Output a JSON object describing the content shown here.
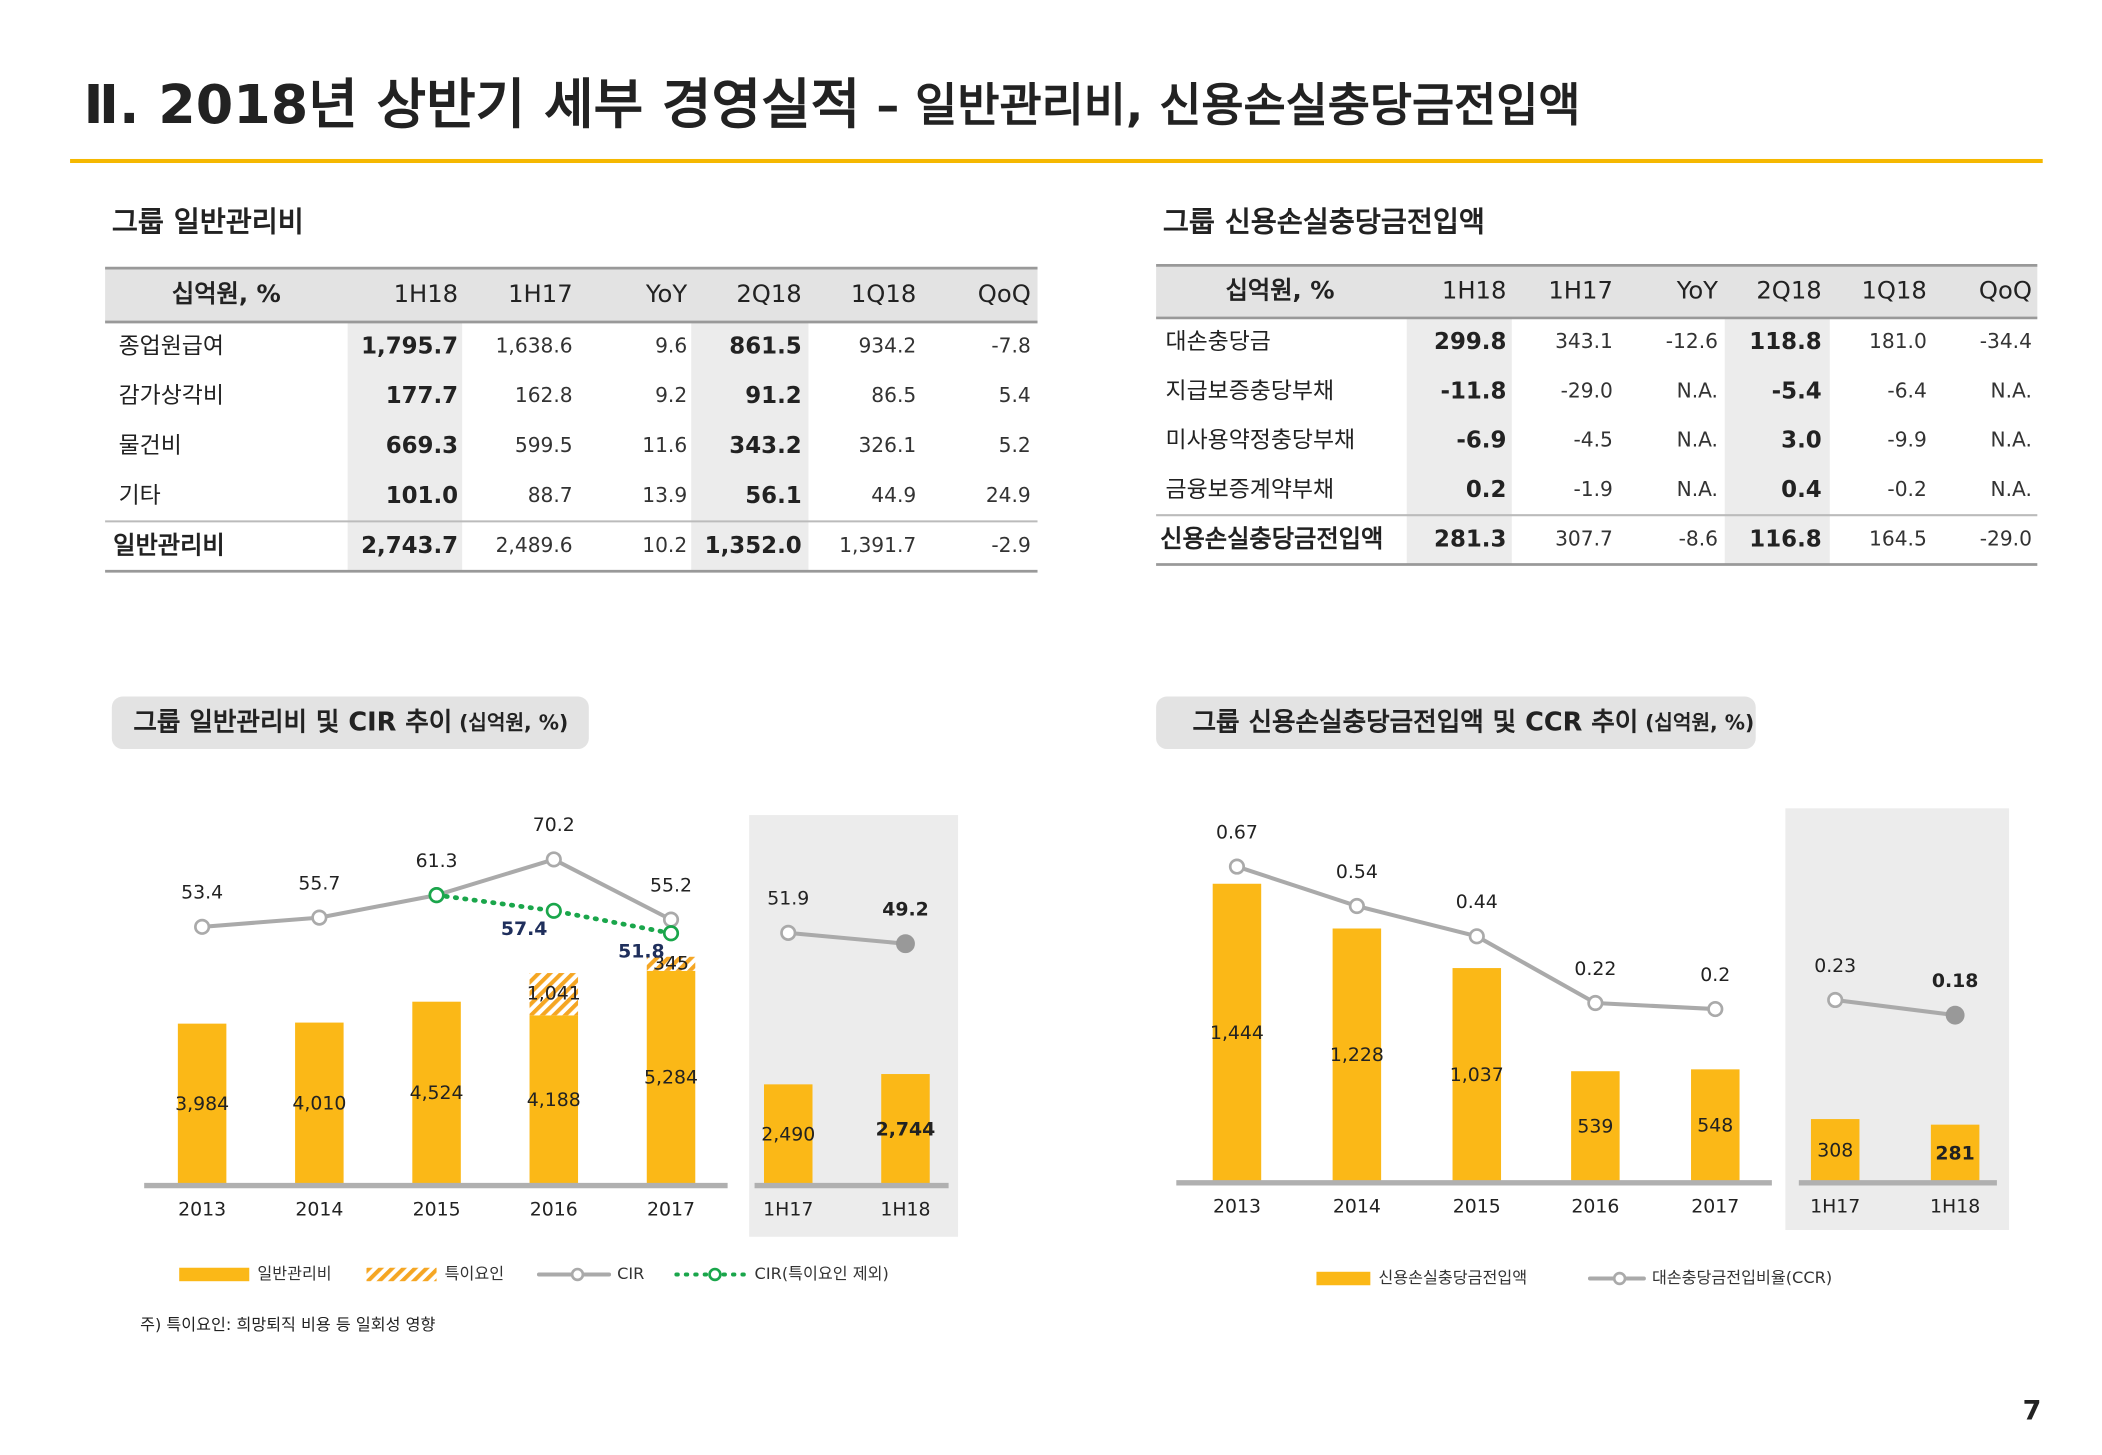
{
  "title": "Ⅱ. 2018년 상반기 세부 경영실적",
  "subtitle": "– 일반관리비, 신용손실충당금전입액",
  "tables": [
    {
      "title": "그룹 일반관리비",
      "header": [
        "십억원, %",
        "1H18",
        "1H17",
        "YoY",
        "2Q18",
        "1Q18",
        "QoQ"
      ],
      "rows": [
        [
          "종업원급여",
          "1,795.7",
          "1,638.6",
          "9.6",
          "861.5",
          "934.2",
          "-7.8"
        ],
        [
          "감가상각비",
          "177.7",
          "162.8",
          "9.2",
          "91.2",
          "86.5",
          "5.4"
        ],
        [
          "물건비",
          "669.3",
          "599.5",
          "11.6",
          "343.2",
          "326.1",
          "5.2"
        ],
        [
          "기타",
          "101.0",
          "88.7",
          "13.9",
          "56.1",
          "44.9",
          "24.9"
        ],
        [
          "일반관리비",
          "2,743.7",
          "2,489.6",
          "10.2",
          "1,352.0",
          "1,391.7",
          "-2.9"
        ]
      ]
    },
    {
      "title": "그룹 신용손실충당금전입액",
      "header": [
        "십억원, %",
        "1H18",
        "1H17",
        "YoY",
        "2Q18",
        "1Q18",
        "QoQ"
      ],
      "rows": [
        [
          "대손충당금",
          "299.8",
          "343.1",
          "-12.6",
          "118.8",
          "181.0",
          "-34.4"
        ],
        [
          "지급보증충당부채",
          "-11.8",
          "-29.0",
          "N.A.",
          "-5.4",
          "-6.4",
          "N.A."
        ],
        [
          "미사용약정충당부채",
          "-6.9",
          "-4.5",
          "N.A.",
          "3.0",
          "-9.9",
          "N.A."
        ],
        [
          "금융보증계약부채",
          "0.2",
          "-1.9",
          "N.A.",
          "0.4",
          "-0.2",
          "N.A."
        ],
        [
          "신용손실충당금전입액",
          "281.3",
          "307.7",
          "-8.6",
          "116.8",
          "164.5",
          "-29.0"
        ]
      ]
    }
  ],
  "chart_data": [
    {
      "type": "bar",
      "title": "그룹 일반관리비 및 CIR 추이",
      "unit": "(십억원, %)",
      "categories": [
        "2013",
        "2014",
        "2015",
        "2016",
        "2017",
        "1H17",
        "1H18"
      ],
      "ylim": [
        0,
        6000
      ],
      "y2lim": [
        20,
        80
      ],
      "series": [
        {
          "name": "일반관리비",
          "color": "#fbb817",
          "values": [
            3984,
            4010,
            4524,
            4188,
            5284,
            2490,
            2744
          ],
          "value_labels": [
            "3,984",
            "4,010",
            "4,524",
            "4,188",
            "5,284",
            "2,490",
            "2,744"
          ]
        },
        {
          "name": "특이요인",
          "color": "#f5a623",
          "stacked": true,
          "values": [
            null,
            null,
            null,
            1041,
            345,
            null,
            null
          ],
          "value_labels": [
            null,
            null,
            null,
            "1,041",
            "345",
            null,
            null
          ]
        },
        {
          "name": "CIR",
          "type": "line",
          "axis": "y2",
          "color": "#aaaaaa",
          "values": [
            53.4,
            55.7,
            61.3,
            70.2,
            55.2,
            51.9,
            49.2
          ]
        },
        {
          "name": "CIR(특이요인 제외)",
          "type": "line",
          "axis": "y2",
          "color": "#1aa64b",
          "line_style": "dotted",
          "values": [
            null,
            null,
            61.3,
            57.4,
            51.8,
            null,
            null
          ]
        }
      ],
      "note": "주) 특이요인: 희망퇴직 비용 등 일회성 영향"
    },
    {
      "type": "bar",
      "title": "그룹 신용손실충당금전입액 및 CCR 추이",
      "unit": "(십억원, %)",
      "categories": [
        "2013",
        "2014",
        "2015",
        "2016",
        "2017",
        "1H17",
        "1H18"
      ],
      "ylim": [
        0,
        1600
      ],
      "y2lim": [
        0,
        0.8
      ],
      "series": [
        {
          "name": "신용손실충당금전입액",
          "color": "#fbb817",
          "values": [
            1444,
            1228,
            1037,
            539,
            548,
            308,
            281
          ],
          "value_labels": [
            "1,444",
            "1,228",
            "1,037",
            "539",
            "548",
            "308",
            "281"
          ]
        },
        {
          "name": "대손충당금전입비율(CCR)",
          "type": "line",
          "axis": "y2",
          "color": "#aaaaaa",
          "values": [
            0.67,
            0.54,
            0.44,
            0.22,
            0.2,
            0.23,
            0.18
          ]
        }
      ]
    }
  ],
  "page_number": "7"
}
